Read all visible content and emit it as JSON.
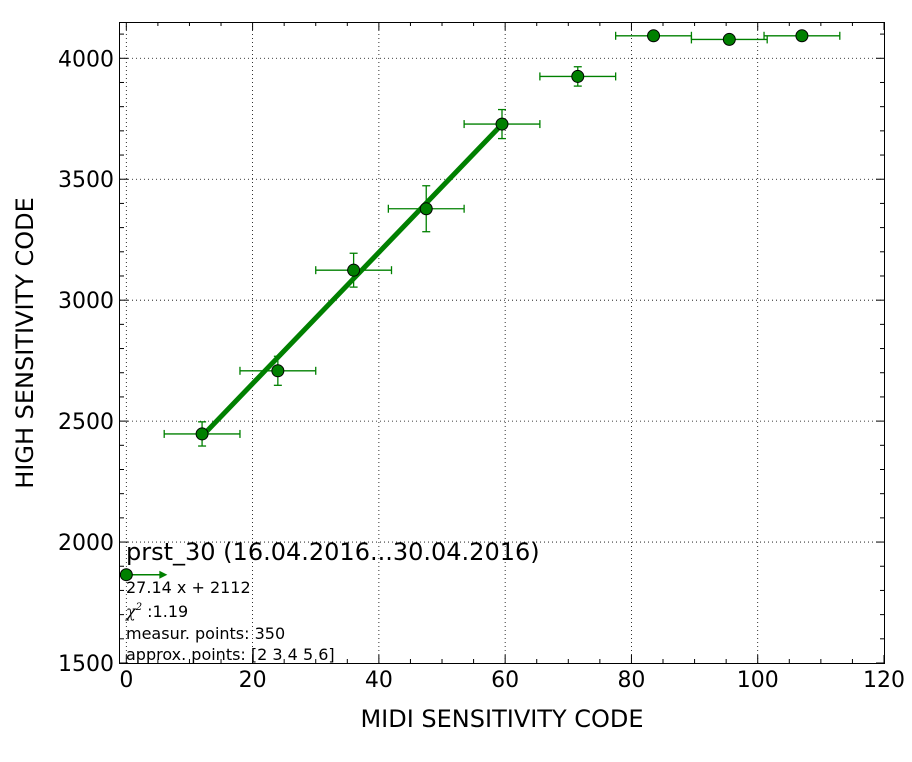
{
  "chart_data": {
    "type": "scatter",
    "title": "",
    "xlabel": "MIDI SENSITIVITY CODE",
    "ylabel": "HIGH SENSITIVITY CODE",
    "xlim": [
      -1,
      120
    ],
    "ylim": [
      1500,
      4150
    ],
    "xticks": [
      0,
      20,
      40,
      60,
      80,
      100,
      120
    ],
    "yticks": [
      1500,
      2000,
      2500,
      3000,
      3500,
      4000
    ],
    "grid": true,
    "series": [
      {
        "kind": "errorbar-points",
        "color": "#008000",
        "points": [
          {
            "x": 0,
            "y": 1865,
            "xerr": 0,
            "yerr": 0
          },
          {
            "x": 12,
            "y": 2447,
            "xerr": 6,
            "yerr": 50
          },
          {
            "x": 24,
            "y": 2708,
            "xerr": 6,
            "yerr": 60
          },
          {
            "x": 36,
            "y": 3124,
            "xerr": 6,
            "yerr": 70
          },
          {
            "x": 47.5,
            "y": 3378,
            "xerr": 6,
            "yerr": 95
          },
          {
            "x": 59.5,
            "y": 3728,
            "xerr": 6,
            "yerr": 60
          },
          {
            "x": 71.5,
            "y": 3925,
            "xerr": 6,
            "yerr": 40
          },
          {
            "x": 83.5,
            "y": 4093,
            "xerr": 6,
            "yerr": 0
          },
          {
            "x": 95.5,
            "y": 4078,
            "xerr": 6,
            "yerr": 0
          },
          {
            "x": 107,
            "y": 4093,
            "xerr": 6,
            "yerr": 0
          }
        ]
      },
      {
        "kind": "fit-line",
        "color": "#008000",
        "x": [
          12,
          59.5
        ],
        "y": [
          2437.7,
          3726.9
        ]
      }
    ],
    "annotations": {
      "title": "prst_30 (16.04.2016...30.04.2016)",
      "formula": "27.14 x + 2112",
      "chi_symbol": "χ",
      "chi_sup": "2",
      "chi_value": " :1.19",
      "measur_points": "measur. points: 350",
      "approx_points": "approx. points: [2 3 4 5 6]"
    },
    "arrow": {
      "x0": 0,
      "x1": 6.5,
      "y": 1865
    }
  }
}
